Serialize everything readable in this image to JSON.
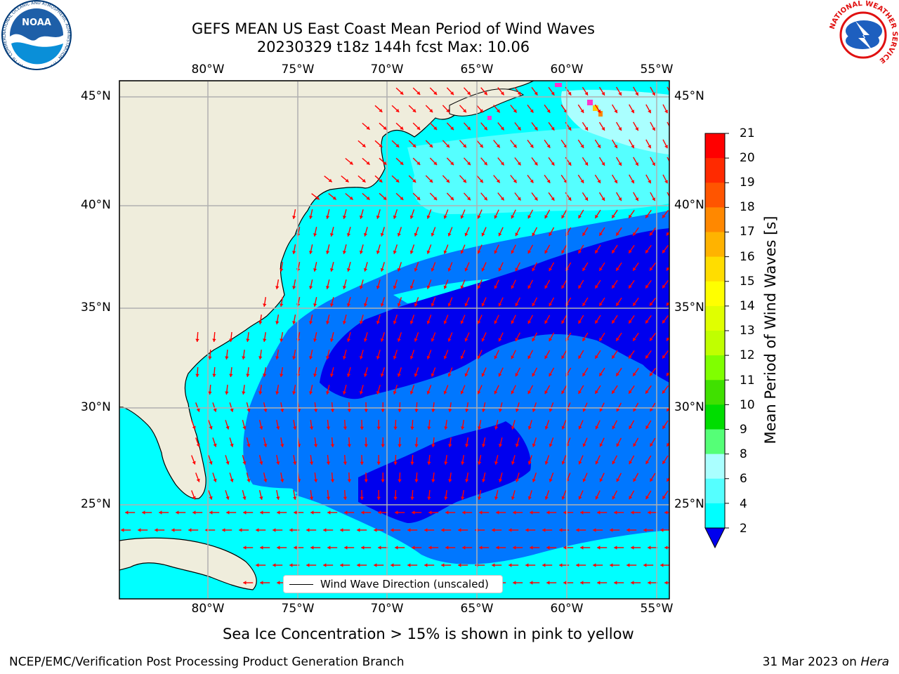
{
  "title": {
    "line1": "GEFS MEAN US East Coast Mean Period of Wind Waves",
    "line2": "20230329 t18z 144h fcst   Max: 10.06"
  },
  "map": {
    "lon_labels": [
      "80°W",
      "75°W",
      "70°W",
      "65°W",
      "60°W",
      "55°W"
    ],
    "lat_labels": [
      "45°N",
      "40°N",
      "35°N",
      "30°N",
      "25°N"
    ],
    "land_color": "#efeddc",
    "grid_color": "#b0b0b0",
    "arrow_color": "#ff0000"
  },
  "colorbar": {
    "label": "Mean Period of Wind Waves [s]",
    "ticks": [
      "21",
      "20",
      "19",
      "18",
      "17",
      "16",
      "15",
      "14",
      "13",
      "12",
      "11",
      "10",
      "9",
      "8",
      "6",
      "4",
      "2"
    ],
    "colors": [
      "#ff0000",
      "#ff2a00",
      "#ff5500",
      "#ff8800",
      "#ffb300",
      "#ffdd00",
      "#ffff00",
      "#e0ff00",
      "#c0ff00",
      "#80ff00",
      "#40e000",
      "#00dd00",
      "#55ff77",
      "#aaffff",
      "#55ffff",
      "#00ffff",
      "#0077ff"
    ],
    "under_color": "#0000ee"
  },
  "legend": {
    "label": "Wind Wave Direction (unscaled)"
  },
  "caption": "Sea Ice Concentration > 15% is shown in pink to yellow",
  "footer": {
    "left": "NCEP/EMC/Verification Post Processing Product Generation Branch",
    "right_date": "31 Mar 2023 on",
    "right_machine": "Hera"
  },
  "logos": {
    "noaa": "NOAA",
    "noaa_ring": "NATIONAL OCEANIC AND ATMOSPHERIC ADMINISTRATION · U.S. DEPARTMENT OF COMMERCE",
    "nws_ring": "NATIONAL WEATHER SERVICE"
  }
}
